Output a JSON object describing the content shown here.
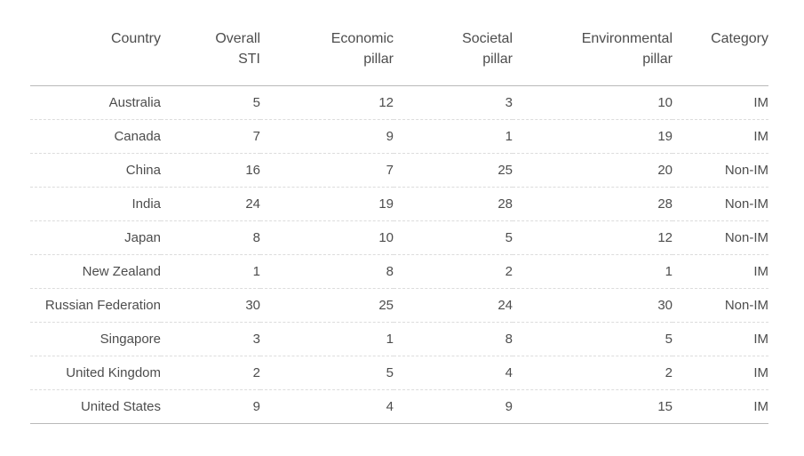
{
  "colors": {
    "background": "#ffffff",
    "text": "#4d4d4d",
    "solid_rule": "#b9b9b9",
    "dashed_rule": "#dcdcdc"
  },
  "table": {
    "columns": [
      {
        "id": "country",
        "label": "Country"
      },
      {
        "id": "overall_sti",
        "label": "Overall\nSTI"
      },
      {
        "id": "economic_pillar",
        "label": "Economic\npillar"
      },
      {
        "id": "societal_pillar",
        "label": "Societal\npillar"
      },
      {
        "id": "environmental_pillar",
        "label": "Environmental\npillar"
      },
      {
        "id": "category",
        "label": "Category"
      }
    ],
    "rows": [
      {
        "cells": [
          "Australia",
          "5",
          "12",
          "3",
          "10",
          "IM"
        ]
      },
      {
        "cells": [
          "Canada",
          "7",
          "9",
          "1",
          "19",
          "IM"
        ]
      },
      {
        "cells": [
          "China",
          "16",
          "7",
          "25",
          "20",
          "Non-IM"
        ]
      },
      {
        "cells": [
          "India",
          "24",
          "19",
          "28",
          "28",
          "Non-IM"
        ]
      },
      {
        "cells": [
          "Japan",
          "8",
          "10",
          "5",
          "12",
          "Non-IM"
        ]
      },
      {
        "cells": [
          "New Zealand",
          "1",
          "8",
          "2",
          "1",
          "IM"
        ]
      },
      {
        "cells": [
          "Russian Federation",
          "30",
          "25",
          "24",
          "30",
          "Non-IM"
        ]
      },
      {
        "cells": [
          "Singapore",
          "3",
          "1",
          "8",
          "5",
          "IM"
        ]
      },
      {
        "cells": [
          "United Kingdom",
          "2",
          "5",
          "4",
          "2",
          "IM"
        ]
      },
      {
        "cells": [
          "United States",
          "9",
          "4",
          "9",
          "15",
          "IM"
        ]
      }
    ]
  },
  "chart_data": {
    "type": "table",
    "columns": [
      "Country",
      "Overall STI",
      "Economic pillar",
      "Societal pillar",
      "Environmental pillar",
      "Category"
    ],
    "rows": [
      [
        "Australia",
        5,
        12,
        3,
        10,
        "IM"
      ],
      [
        "Canada",
        7,
        9,
        1,
        19,
        "IM"
      ],
      [
        "China",
        16,
        7,
        25,
        20,
        "Non-IM"
      ],
      [
        "India",
        24,
        19,
        28,
        28,
        "Non-IM"
      ],
      [
        "Japan",
        8,
        10,
        5,
        12,
        "Non-IM"
      ],
      [
        "New Zealand",
        1,
        8,
        2,
        1,
        "IM"
      ],
      [
        "Russian Federation",
        30,
        25,
        24,
        30,
        "Non-IM"
      ],
      [
        "Singapore",
        3,
        1,
        8,
        5,
        "IM"
      ],
      [
        "United Kingdom",
        2,
        5,
        4,
        2,
        "IM"
      ],
      [
        "United States",
        9,
        4,
        9,
        15,
        "IM"
      ]
    ]
  }
}
